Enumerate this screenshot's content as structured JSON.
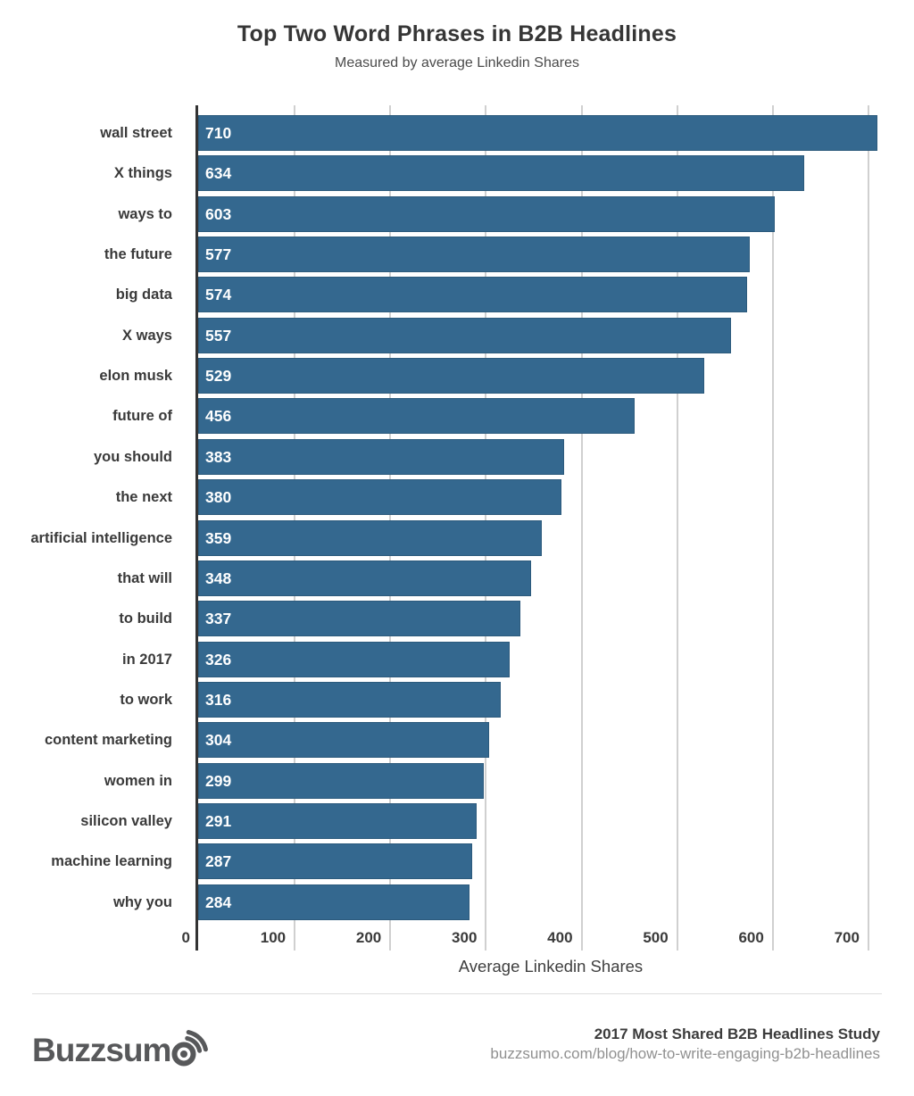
{
  "chart_data": {
    "type": "bar",
    "orientation": "horizontal",
    "title": "Top Two Word Phrases in B2B Headlines",
    "subtitle": "Measured by average Linkedin Shares",
    "xlabel": "Average Linkedin Shares",
    "categories": [
      "wall street",
      "X things",
      "ways to",
      "the future",
      "big data",
      "X ways",
      "elon musk",
      "future of",
      "you should",
      "the next",
      "artificial intelligence",
      "that will",
      "to build",
      "in 2017",
      "to work",
      "content marketing",
      "women in",
      "silicon valley",
      "machine learning",
      "why you"
    ],
    "values": [
      710,
      634,
      603,
      577,
      574,
      557,
      529,
      456,
      383,
      380,
      359,
      348,
      337,
      326,
      316,
      304,
      299,
      291,
      287,
      284
    ],
    "value_labels_shown": true,
    "xticks": [
      0,
      100,
      200,
      300,
      400,
      500,
      600,
      700
    ],
    "xlim": [
      0,
      737
    ],
    "grid": "vertical",
    "legend": "none",
    "colors": {
      "bar_fill": "#34688F",
      "bar_border": "#2C5A7C",
      "value_label": "#FFFFFF",
      "gridline": "#D0D0D0",
      "axis_line": "#333333",
      "tick_label": "#3A3A3A"
    }
  },
  "footer": {
    "logo_text": "Buzzsumo",
    "study_title": "2017 Most Shared B2B Headlines Study",
    "url": "buzzsumo.com/blog/how-to-write-engaging-b2b-headlines"
  }
}
